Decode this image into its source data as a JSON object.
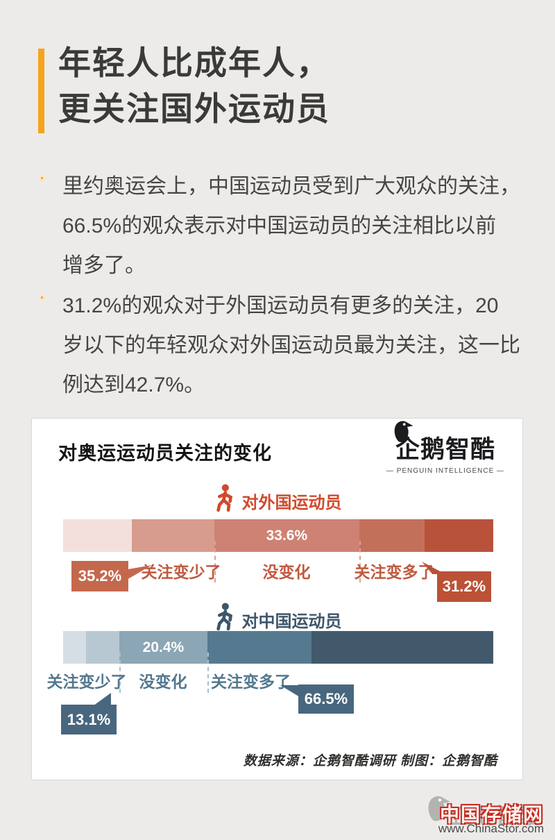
{
  "header": {
    "title_line1": "年轻人比成年人，",
    "title_line2": "更关注国外运动员"
  },
  "bullets": [
    {
      "text": "里约奥运会上，中国运动员受到广大观众的关注，\n66.5%的观众表示对中国运动员的关注相比以前\n增多了。"
    },
    {
      "text": "31.2%的观众对于外国运动员有更多的关注，20\n岁以下的年轻观众对外国运动员最为关注，这一比\n例达到42.7%。"
    }
  ],
  "card": {
    "title": "对奥运运动员关注的变化",
    "logo": {
      "name": "企鹅智酷",
      "subtitle": "— PENGUIN INTELLIGENCE —"
    },
    "source": "数据来源：企鹅智酷调研  制图：企鹅智酷"
  },
  "chart_data": [
    {
      "type": "bar",
      "layout": "horizontal-stacked",
      "title": "对外国运动员",
      "icon": "walking-person-icon",
      "categories": [
        "关注变少了",
        "没变化",
        "关注变多了"
      ],
      "values": [
        35.2,
        33.6,
        31.2
      ],
      "accent": "#d1492c",
      "label_color": "#c05a40",
      "segments": [
        {
          "pct": 16.0,
          "color": "#f3e0dc"
        },
        {
          "pct": 19.2,
          "color": "#d79c8d"
        },
        {
          "pct": 33.6,
          "color": "#cd8273",
          "label": "33.6%"
        },
        {
          "pct": 15.2,
          "color": "#c3705b"
        },
        {
          "pct": 16.0,
          "color": "#b9523a"
        }
      ],
      "callouts": [
        {
          "label": "35.2%",
          "color": "#c4684d"
        },
        {
          "label": "31.2%",
          "color": "#bb5137"
        }
      ]
    },
    {
      "type": "bar",
      "layout": "horizontal-stacked",
      "title": "对中国运动员",
      "icon": "walking-person-icon",
      "categories": [
        "关注变少了",
        "没变化",
        "关注变多了"
      ],
      "values": [
        13.1,
        20.4,
        66.5
      ],
      "accent": "#3e566a",
      "label_color": "#54788e",
      "segments": [
        {
          "pct": 5.3,
          "color": "#d4dee4"
        },
        {
          "pct": 7.8,
          "color": "#b8c8d2"
        },
        {
          "pct": 20.4,
          "color": "#8ba6b5",
          "label": "20.4%"
        },
        {
          "pct": 24.3,
          "color": "#557a8f"
        },
        {
          "pct": 42.2,
          "color": "#42596b"
        }
      ],
      "callouts": [
        {
          "label": "13.1%",
          "color": "#48677e"
        },
        {
          "label": "66.5%",
          "color": "#48677e"
        }
      ]
    }
  ],
  "watermark": {
    "logo": "企鹅智酷",
    "site": "中国存储网",
    "url": "www.ChinaStor.com"
  },
  "colors": {
    "background": "#ecebe9",
    "accent_orange": "#f5a31d",
    "card_border": "#d8d8d6"
  }
}
